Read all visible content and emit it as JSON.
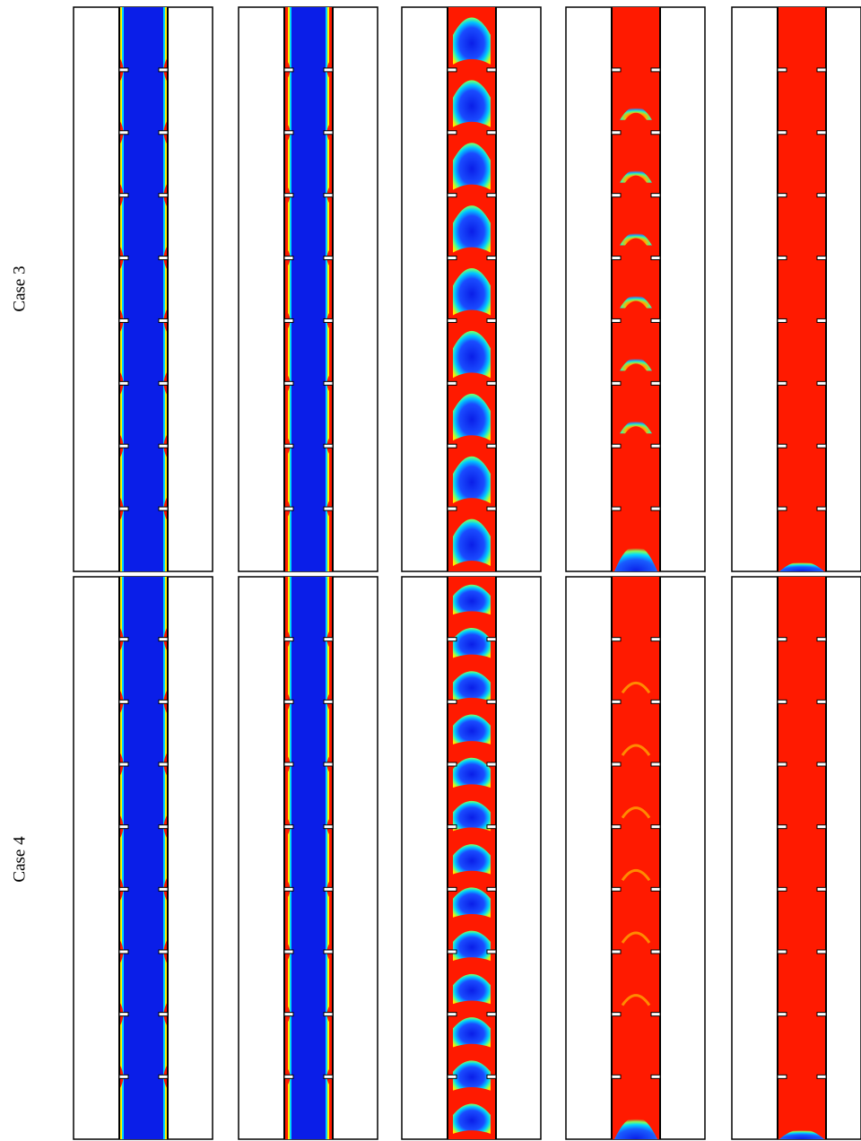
{
  "figure": {
    "rows": [
      {
        "label": "Case 3",
        "stages": [
          "full",
          "full",
          "slugs",
          "caps",
          "bottom-cap"
        ]
      },
      {
        "label": "Case 4",
        "stages": [
          "full",
          "full",
          "slugs",
          "rings",
          "bottom-cap"
        ]
      }
    ],
    "baffles_per_panel": 8,
    "colors": {
      "liquid": "#ff1a00",
      "gas": "#0a1ee8",
      "interface_mid": "#00d4ff",
      "interface_light": "#fff200",
      "frame": "#000000",
      "background": "#ffffff"
    }
  }
}
